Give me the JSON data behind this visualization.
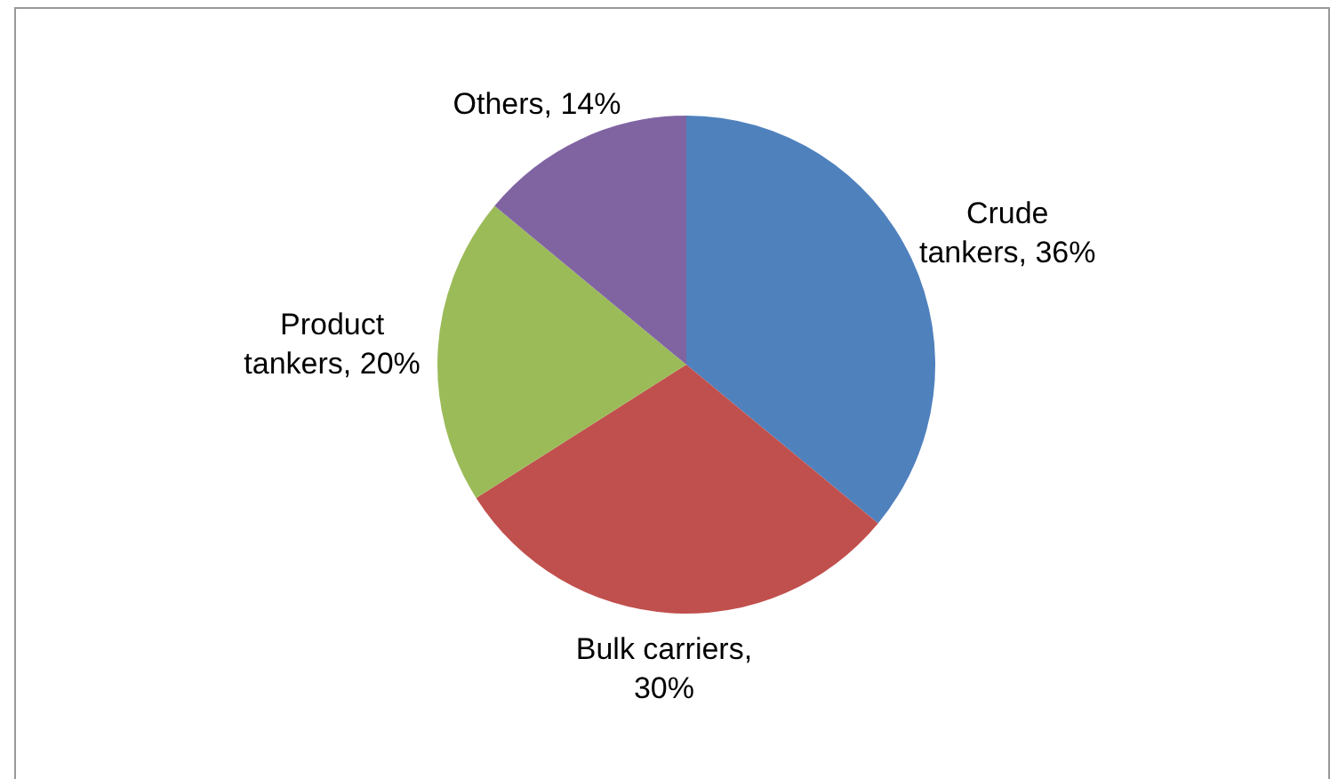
{
  "chart_data": {
    "type": "pie",
    "categories": [
      "Crude tankers, 36%",
      "Bulk carriers, 30%",
      "Product tankers, 20%",
      "Others, 14%"
    ],
    "values": [
      36,
      30,
      20,
      14
    ],
    "colors": [
      "#4f81bd",
      "#c0504d",
      "#9bbb59",
      "#8064a2"
    ]
  }
}
